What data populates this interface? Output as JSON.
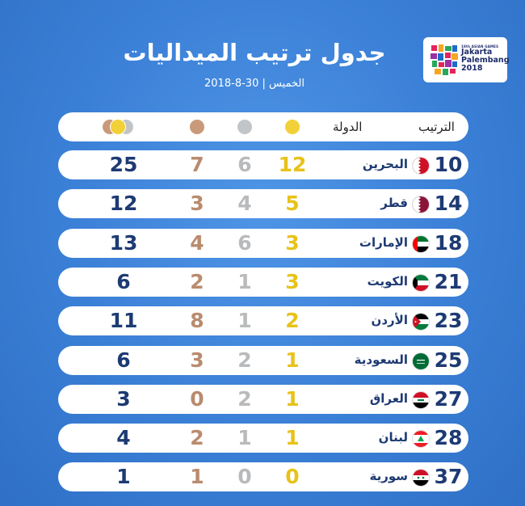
{
  "logo": {
    "small_text": "18th ASIAN GAMES",
    "line1": "Jakarta",
    "line2": "Palembang",
    "line3": "2018"
  },
  "title": "جدول ترتيب الميداليات",
  "subtitle": "الخميس | 30-8-2018",
  "header": {
    "rank_label": "الترتيب",
    "country_label": "الدولة"
  },
  "colors": {
    "background": "#3a7fd6",
    "gold": "#e8c21a",
    "silver": "#b8babc",
    "bronze": "#b98b6e",
    "total": "#1d3a73"
  },
  "rows": [
    {
      "rank": "10",
      "country": "البحرين",
      "flag": "bahrain-flag-icon",
      "gold": "12",
      "silver": "6",
      "bronze": "7",
      "total": "25"
    },
    {
      "rank": "14",
      "country": "قطر",
      "flag": "qatar-flag-icon",
      "gold": "5",
      "silver": "4",
      "bronze": "3",
      "total": "12"
    },
    {
      "rank": "18",
      "country": "الإمارات",
      "flag": "uae-flag-icon",
      "gold": "3",
      "silver": "6",
      "bronze": "4",
      "total": "13"
    },
    {
      "rank": "21",
      "country": "الكويت",
      "flag": "kuwait-flag-icon",
      "gold": "3",
      "silver": "1",
      "bronze": "2",
      "total": "6"
    },
    {
      "rank": "23",
      "country": "الأردن",
      "flag": "jordan-flag-icon",
      "gold": "2",
      "silver": "1",
      "bronze": "8",
      "total": "11"
    },
    {
      "rank": "25",
      "country": "السعودية",
      "flag": "saudi-flag-icon",
      "gold": "1",
      "silver": "2",
      "bronze": "3",
      "total": "6"
    },
    {
      "rank": "27",
      "country": "العراق",
      "flag": "iraq-flag-icon",
      "gold": "1",
      "silver": "2",
      "bronze": "0",
      "total": "3"
    },
    {
      "rank": "28",
      "country": "لبنان",
      "flag": "lebanon-flag-icon",
      "gold": "1",
      "silver": "1",
      "bronze": "2",
      "total": "4"
    },
    {
      "rank": "37",
      "country": "سورية",
      "flag": "syria-flag-icon",
      "gold": "0",
      "silver": "0",
      "bronze": "1",
      "total": "1"
    }
  ]
}
